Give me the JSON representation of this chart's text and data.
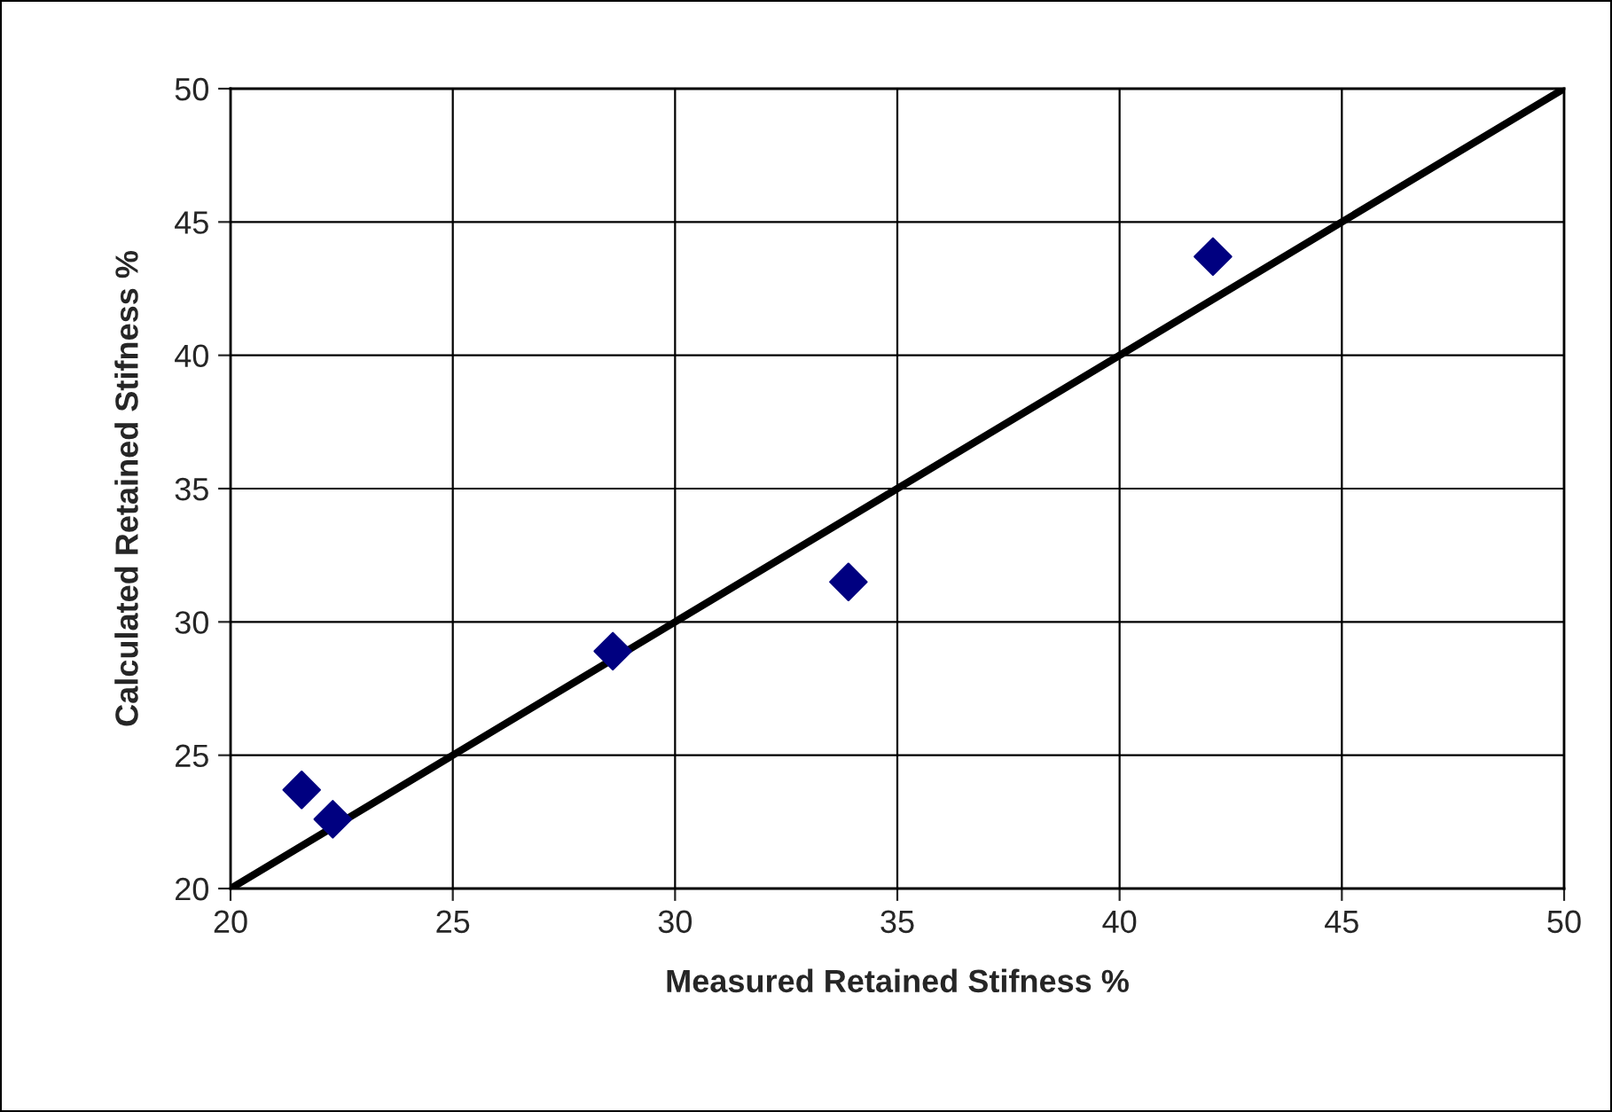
{
  "chart_data": {
    "type": "scatter",
    "xlabel": "Measured Retained Stifness %",
    "ylabel": "Calculated Retained Stifness %",
    "series": [
      {
        "type": "scatter",
        "color": "#000080",
        "marker": "diamond",
        "x": [
          21.6,
          22.3,
          28.6,
          33.9,
          42.1
        ],
        "values": [
          23.7,
          22.6,
          28.9,
          31.5,
          43.7
        ]
      },
      {
        "type": "line",
        "color": "#000000",
        "marker": "none",
        "line_style": "solid",
        "x": [
          20,
          50
        ],
        "values": [
          20,
          50
        ]
      }
    ],
    "xlim": [
      20,
      50
    ],
    "ylim": [
      20,
      50
    ],
    "xticks": [
      20,
      25,
      30,
      35,
      40,
      45,
      50
    ],
    "yticks": [
      20,
      25,
      30,
      35,
      40,
      45,
      50
    ],
    "grid": true
  }
}
